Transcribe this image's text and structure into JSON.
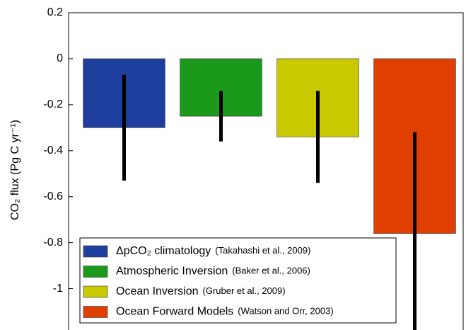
{
  "chart_data": {
    "type": "bar",
    "y_label": "CO₂ flux (Pg C yr⁻¹)",
    "values": [
      -0.3,
      -0.25,
      -0.34,
      -0.76
    ],
    "errors": [
      0.23,
      0.11,
      0.2,
      0.44
    ],
    "colors": [
      "#1f3f9f",
      "#1a991a",
      "#c9c900",
      "#e03f00"
    ],
    "legend": [
      {
        "name": "ΔpCO₂ climatology",
        "source": "(Takahashi et al., 2009)"
      },
      {
        "name": "Atmospheric Inversion",
        "source": "(Baker et al., 2006)"
      },
      {
        "name": "Ocean Inversion",
        "source": "(Gruber et al., 2009)"
      },
      {
        "name": "Ocean Forward Models",
        "source": "(Watson and Orr, 2003)"
      }
    ],
    "ylim": [
      -1.18,
      0.2
    ],
    "yticks": [
      0.2,
      0,
      -0.2,
      -0.4,
      -0.6,
      -0.8,
      -1
    ]
  }
}
